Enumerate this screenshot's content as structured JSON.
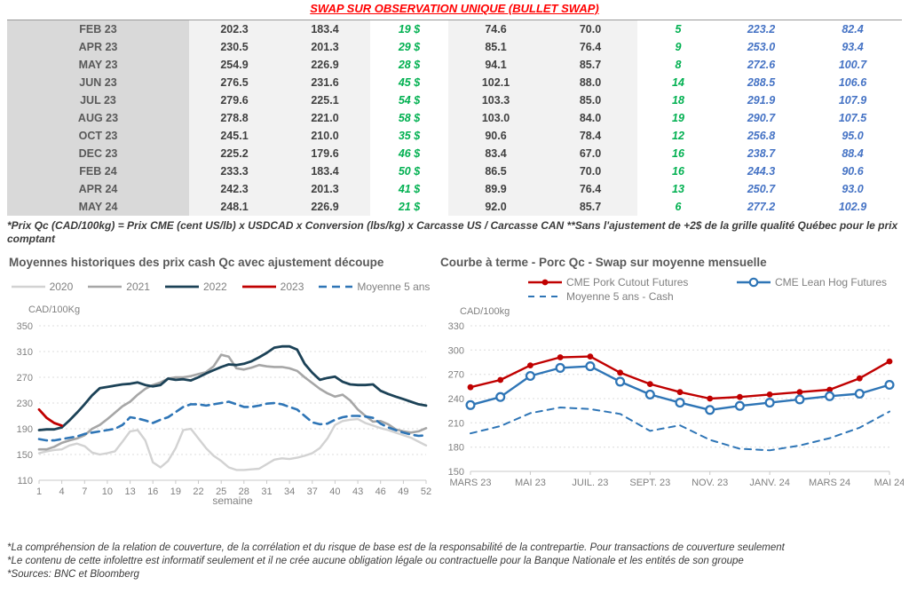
{
  "title": "SWAP SUR OBSERVATION UNIQUE (BULLET SWAP)",
  "table": {
    "rows": [
      {
        "month": "FEB 23",
        "v1": "202.3",
        "v2": "183.4",
        "d1": "19 $",
        "v3": "74.6",
        "v4": "70.0",
        "d2": "5",
        "v5": "223.2",
        "v6": "82.4"
      },
      {
        "month": "APR 23",
        "v1": "230.5",
        "v2": "201.3",
        "d1": "29 $",
        "v3": "85.1",
        "v4": "76.4",
        "d2": "9",
        "v5": "253.0",
        "v6": "93.4"
      },
      {
        "month": "MAY 23",
        "v1": "254.9",
        "v2": "226.9",
        "d1": "28 $",
        "v3": "94.1",
        "v4": "85.7",
        "d2": "8",
        "v5": "272.6",
        "v6": "100.7"
      },
      {
        "month": "JUN 23",
        "v1": "276.5",
        "v2": "231.6",
        "d1": "45 $",
        "v3": "102.1",
        "v4": "88.0",
        "d2": "14",
        "v5": "288.5",
        "v6": "106.6"
      },
      {
        "month": "JUL 23",
        "v1": "279.6",
        "v2": "225.1",
        "d1": "54 $",
        "v3": "103.3",
        "v4": "85.0",
        "d2": "18",
        "v5": "291.9",
        "v6": "107.9"
      },
      {
        "month": "AUG 23",
        "v1": "278.8",
        "v2": "221.0",
        "d1": "58 $",
        "v3": "103.0",
        "v4": "84.0",
        "d2": "19",
        "v5": "290.7",
        "v6": "107.5"
      },
      {
        "month": "OCT 23",
        "v1": "245.1",
        "v2": "210.0",
        "d1": "35 $",
        "v3": "90.6",
        "v4": "78.4",
        "d2": "12",
        "v5": "256.8",
        "v6": "95.0"
      },
      {
        "month": "DEC 23",
        "v1": "225.2",
        "v2": "179.6",
        "d1": "46 $",
        "v3": "83.4",
        "v4": "67.0",
        "d2": "16",
        "v5": "238.7",
        "v6": "88.4"
      },
      {
        "month": "FEB 24",
        "v1": "233.3",
        "v2": "183.4",
        "d1": "50 $",
        "v3": "86.5",
        "v4": "70.0",
        "d2": "16",
        "v5": "244.3",
        "v6": "90.6"
      },
      {
        "month": "APR 24",
        "v1": "242.3",
        "v2": "201.3",
        "d1": "41 $",
        "v3": "89.9",
        "v4": "76.4",
        "d2": "13",
        "v5": "250.7",
        "v6": "93.0"
      },
      {
        "month": "MAY 24",
        "v1": "248.1",
        "v2": "226.9",
        "d1": "21 $",
        "v3": "92.0",
        "v4": "85.7",
        "d2": "6",
        "v5": "277.2",
        "v6": "102.9"
      }
    ]
  },
  "table_footnote": "*Prix Qc (CAD/100kg) = Prix CME (cent US/lb) x USDCAD x Conversion (lbs/kg) x Carcasse US / Carcasse CAN **Sans l'ajustement de +2$ de la grille qualité Québec pour le prix comptant",
  "colors": {
    "title_red": "#ff0000",
    "table_green": "#00b050",
    "table_blue": "#4472c4",
    "series_2020": "#d2d2d2",
    "series_2021": "#a6a6a6",
    "series_2022": "#1c4257",
    "series_red": "#c00000",
    "series_blue_dash": "#2e75b6"
  },
  "chart_data": [
    {
      "type": "line",
      "title": "Moyennes historiques des prix cash Qc avec ajustement découpe",
      "unit_label": "CAD/100Kg",
      "xlabel": "semaine",
      "ylim": [
        110,
        350
      ],
      "yticks": [
        110,
        150,
        190,
        230,
        270,
        310,
        350
      ],
      "xlim": [
        1,
        52
      ],
      "x_ticks": [
        {
          "v": 1,
          "label": "1"
        },
        {
          "v": 4,
          "label": "4"
        },
        {
          "v": 7,
          "label": "7"
        },
        {
          "v": 10,
          "label": "10"
        },
        {
          "v": 13,
          "label": "13"
        },
        {
          "v": 16,
          "label": "16"
        },
        {
          "v": 19,
          "label": "19"
        },
        {
          "v": 22,
          "label": "22"
        },
        {
          "v": 25,
          "label": "25"
        },
        {
          "v": 28,
          "label": "28"
        },
        {
          "v": 31,
          "label": "31"
        },
        {
          "v": 34,
          "label": "34"
        },
        {
          "v": 37,
          "label": "37"
        },
        {
          "v": 40,
          "label": "40"
        },
        {
          "v": 43,
          "label": "43"
        },
        {
          "v": 46,
          "label": "46"
        },
        {
          "v": 49,
          "label": "49"
        },
        {
          "v": 52,
          "label": "52"
        }
      ],
      "grid": "horizontal-dashed",
      "legend_position": "top-center",
      "series": [
        {
          "name": "2020",
          "color": "#d2d2d2",
          "lw": 2.4,
          "step": 1,
          "values": [
            152,
            155,
            157,
            158,
            164,
            167,
            163,
            153,
            150,
            152,
            155,
            170,
            186,
            188,
            172,
            138,
            130,
            140,
            160,
            188,
            190,
            175,
            160,
            148,
            140,
            130,
            126,
            126,
            127,
            128,
            135,
            142,
            144,
            143,
            145,
            148,
            152,
            160,
            175,
            196,
            202,
            204,
            205,
            199,
            195,
            191,
            188,
            184,
            180,
            176,
            170,
            164
          ]
        },
        {
          "name": "2021",
          "color": "#a6a6a6",
          "lw": 2.6,
          "step": 1,
          "values": [
            158,
            158,
            162,
            168,
            172,
            175,
            180,
            190,
            196,
            205,
            215,
            225,
            232,
            243,
            252,
            258,
            262,
            268,
            270,
            270,
            272,
            275,
            278,
            287,
            305,
            302,
            284,
            282,
            285,
            289,
            287,
            286,
            286,
            284,
            280,
            270,
            261,
            252,
            245,
            240,
            243,
            234,
            220,
            210,
            201,
            202,
            197,
            189,
            186,
            184,
            186,
            191
          ]
        },
        {
          "name": "2022",
          "color": "#1c4257",
          "lw": 2.8,
          "step": 1,
          "values": [
            188,
            189,
            189,
            192,
            203,
            215,
            228,
            242,
            253,
            255,
            257,
            259,
            260,
            262,
            258,
            256,
            258,
            268,
            266,
            267,
            265,
            270,
            276,
            281,
            286,
            290,
            289,
            291,
            295,
            301,
            308,
            316,
            318,
            318,
            313,
            291,
            277,
            266,
            269,
            271,
            263,
            259,
            258,
            258,
            259,
            249,
            244,
            240,
            236,
            232,
            228,
            226
          ]
        },
        {
          "name": "2023",
          "color": "#c00000",
          "lw": 2.8,
          "step": 1,
          "values": [
            220,
            207,
            199,
            195
          ]
        },
        {
          "name": "Moyenne 5 ans",
          "color": "#2e75b6",
          "lw": 2.6,
          "dash": "9 6",
          "step": 1,
          "values": [
            174,
            172,
            172,
            174,
            176,
            178,
            182,
            184,
            186,
            188,
            190,
            196,
            208,
            206,
            203,
            199,
            204,
            208,
            216,
            224,
            228,
            228,
            226,
            228,
            230,
            232,
            228,
            224,
            224,
            226,
            229,
            230,
            228,
            224,
            220,
            210,
            200,
            197,
            198,
            204,
            208,
            210,
            210,
            209,
            207,
            198,
            192,
            188,
            184,
            181,
            179,
            180
          ]
        }
      ]
    },
    {
      "type": "line",
      "title": "Courbe à terme - Porc Qc - Swap sur moyenne mensuelle",
      "unit_label": "CAD/100kg",
      "xlabel": "",
      "ylim": [
        150,
        330
      ],
      "yticks": [
        150,
        180,
        210,
        240,
        270,
        300,
        330
      ],
      "xlim": [
        0,
        14
      ],
      "x_ticks": [
        {
          "v": 0,
          "label": "MARS 23"
        },
        {
          "v": 2,
          "label": "MAI 23"
        },
        {
          "v": 4,
          "label": "JUIL. 23"
        },
        {
          "v": 6,
          "label": "SEPT. 23"
        },
        {
          "v": 8,
          "label": "NOV. 23"
        },
        {
          "v": 10,
          "label": "JANV. 24"
        },
        {
          "v": 12,
          "label": "MARS 24"
        },
        {
          "v": 14,
          "label": "MAI 24"
        }
      ],
      "grid": "horizontal-dashed",
      "legend_position": "top-left-two-columns",
      "series": [
        {
          "name": "CME Pork Cutout Futures",
          "color": "#c00000",
          "lw": 2.4,
          "marker": "dot",
          "step": 1,
          "values": [
            254,
            263,
            281,
            291,
            292,
            272,
            258,
            248,
            240,
            242,
            245,
            248,
            251,
            265,
            286
          ]
        },
        {
          "name": "CME Lean Hog Futures",
          "color": "#2e75b6",
          "lw": 2.4,
          "marker": "circle",
          "step": 1,
          "values": [
            232,
            242,
            268,
            278,
            280,
            261,
            245,
            235,
            226,
            231,
            235,
            239,
            243,
            246,
            257
          ]
        },
        {
          "name": "Moyenne 5 ans - Cash",
          "color": "#2e75b6",
          "lw": 2.0,
          "dash": "7 6",
          "step": 1,
          "values": [
            197,
            206,
            222,
            229,
            227,
            221,
            200,
            207,
            189,
            178,
            176,
            182,
            191,
            204,
            224
          ]
        }
      ]
    }
  ],
  "footer": {
    "line1": "*La compréhension de la relation de couverture, de la corrélation et du risque de base est de la responsabilité de la contrepartie. Pour transactions de couverture seulement",
    "line2": "*Le contenu de cette infolettre est informatif seulement et il ne crée aucune obligation légale ou contractuelle pour la Banque Nationale et les entités de son groupe",
    "line3": "*Sources: BNC et Bloomberg"
  }
}
